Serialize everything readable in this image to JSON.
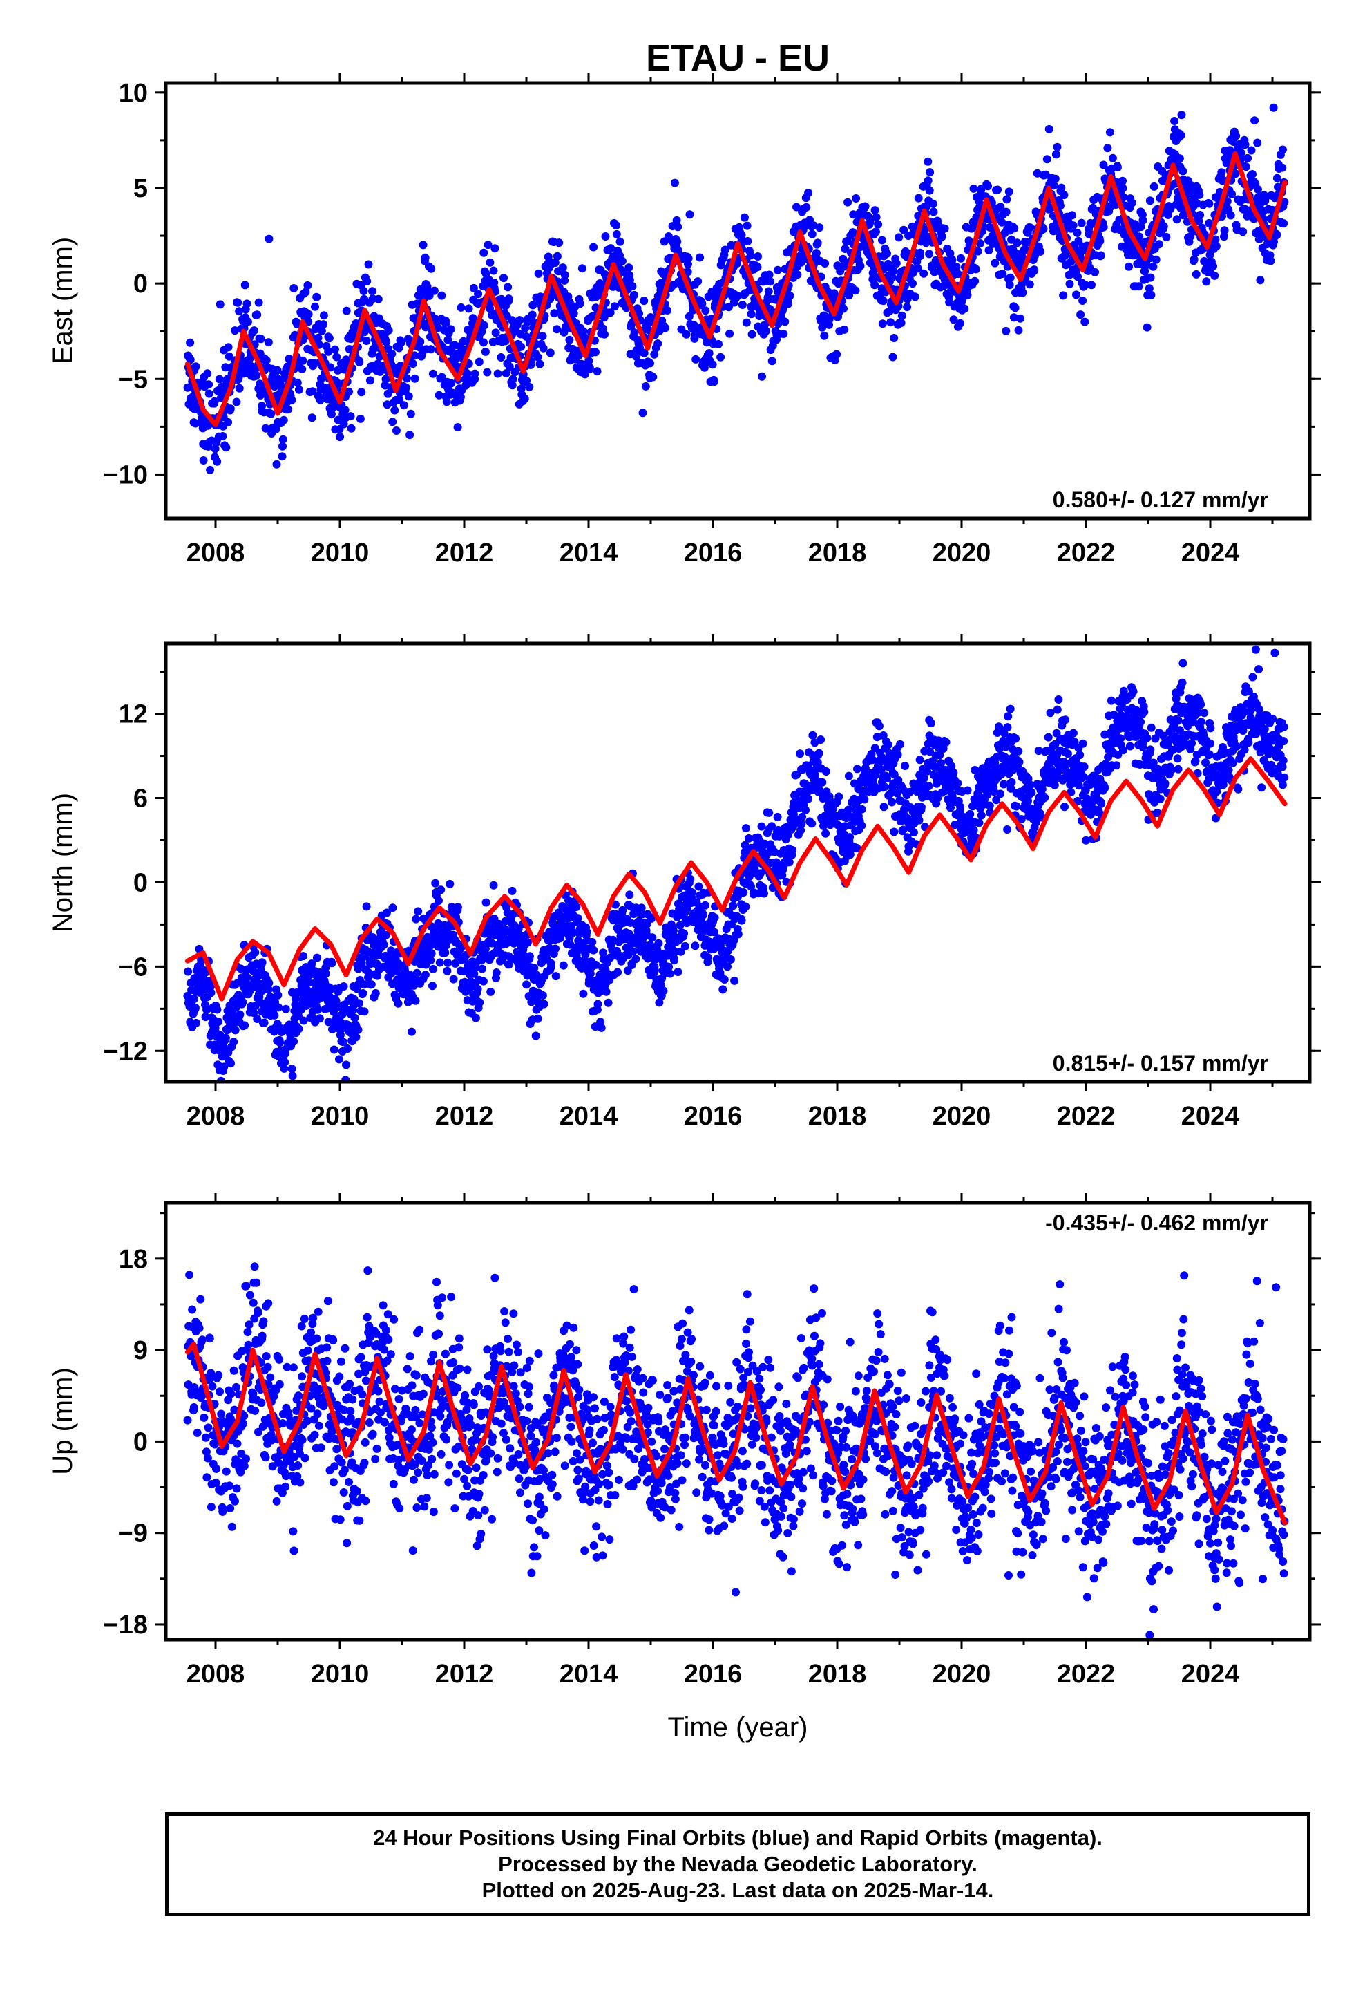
{
  "title": "ETAU - EU",
  "x_axis_label": "Time (year)",
  "footer": {
    "line1": "24 Hour Positions Using Final Orbits (blue) and Rapid Orbits (magenta).",
    "line2": "Processed by the Nevada Geodetic Laboratory.",
    "line3": "Plotted on 2025-Aug-23. Last data on 2025-Mar-14."
  },
  "colors": {
    "data_points": "#0000ff",
    "model_curve": "#ff0000",
    "frame": "#000000"
  },
  "chart_data": [
    {
      "type": "scatter",
      "panel": "East",
      "ylabel": "East (mm)",
      "xlim": [
        2007.2,
        2025.6
      ],
      "ylim": [
        -12.3,
        10.5
      ],
      "x_ticks": [
        2008,
        2010,
        2012,
        2014,
        2016,
        2018,
        2020,
        2022,
        2024
      ],
      "y_ticks": [
        -10,
        -5,
        0,
        5,
        10
      ],
      "rate_label": "0.580+/- 0.127 mm/yr",
      "rate_position": "bottom-right",
      "grid": false,
      "data_start": 2007.55,
      "data_end": 2025.2,
      "model_samples": [
        [
          2007.55,
          -4.2
        ],
        [
          2007.8,
          -6.6
        ],
        [
          2008.0,
          -7.4
        ],
        [
          2008.25,
          -5.4
        ],
        [
          2008.45,
          -2.5
        ],
        [
          2008.7,
          -4.2
        ],
        [
          2009.0,
          -6.8
        ],
        [
          2009.2,
          -5.0
        ],
        [
          2009.4,
          -2.0
        ],
        [
          2009.7,
          -4.0
        ],
        [
          2010.0,
          -6.2
        ],
        [
          2010.2,
          -4.0
        ],
        [
          2010.4,
          -1.4
        ],
        [
          2010.7,
          -3.6
        ],
        [
          2010.9,
          -5.6
        ],
        [
          2011.2,
          -3.0
        ],
        [
          2011.35,
          -0.9
        ],
        [
          2011.6,
          -3.5
        ],
        [
          2011.9,
          -5.0
        ],
        [
          2012.1,
          -3.3
        ],
        [
          2012.4,
          -0.3
        ],
        [
          2012.7,
          -2.5
        ],
        [
          2012.95,
          -4.6
        ],
        [
          2013.2,
          -2.0
        ],
        [
          2013.4,
          0.4
        ],
        [
          2013.7,
          -2.0
        ],
        [
          2013.95,
          -3.8
        ],
        [
          2014.2,
          -1.2
        ],
        [
          2014.4,
          1.0
        ],
        [
          2014.7,
          -1.4
        ],
        [
          2014.95,
          -3.4
        ],
        [
          2015.2,
          -0.8
        ],
        [
          2015.4,
          1.5
        ],
        [
          2015.7,
          -1.0
        ],
        [
          2015.95,
          -2.8
        ],
        [
          2016.2,
          -0.2
        ],
        [
          2016.4,
          2.1
        ],
        [
          2016.7,
          -0.5
        ],
        [
          2016.95,
          -2.2
        ],
        [
          2017.2,
          0.2
        ],
        [
          2017.4,
          2.7
        ],
        [
          2017.7,
          0.0
        ],
        [
          2017.95,
          -1.6
        ],
        [
          2018.2,
          0.8
        ],
        [
          2018.4,
          3.3
        ],
        [
          2018.7,
          0.5
        ],
        [
          2018.95,
          -1.0
        ],
        [
          2019.2,
          1.5
        ],
        [
          2019.4,
          3.8
        ],
        [
          2019.7,
          1.0
        ],
        [
          2019.95,
          -0.4
        ],
        [
          2020.2,
          2.0
        ],
        [
          2020.4,
          4.4
        ],
        [
          2020.7,
          1.6
        ],
        [
          2020.95,
          0.2
        ],
        [
          2021.2,
          2.6
        ],
        [
          2021.4,
          5.0
        ],
        [
          2021.7,
          2.1
        ],
        [
          2021.95,
          0.7
        ],
        [
          2022.2,
          3.2
        ],
        [
          2022.4,
          5.6
        ],
        [
          2022.7,
          2.7
        ],
        [
          2022.95,
          1.3
        ],
        [
          2023.2,
          3.8
        ],
        [
          2023.4,
          6.2
        ],
        [
          2023.7,
          3.3
        ],
        [
          2023.95,
          1.9
        ],
        [
          2024.2,
          4.4
        ],
        [
          2024.4,
          6.8
        ],
        [
          2024.7,
          3.9
        ],
        [
          2024.95,
          2.4
        ],
        [
          2025.2,
          5.3
        ]
      ]
    },
    {
      "type": "scatter",
      "panel": "North",
      "ylabel": "North (mm)",
      "xlim": [
        2007.2,
        2025.6
      ],
      "ylim": [
        -14.2,
        17.0
      ],
      "x_ticks": [
        2008,
        2010,
        2012,
        2014,
        2016,
        2018,
        2020,
        2022,
        2024
      ],
      "y_ticks": [
        -12,
        -6,
        0,
        6,
        12
      ],
      "rate_label": "0.815+/- 0.157 mm/yr",
      "rate_position": "bottom-right",
      "grid": false,
      "data_start": 2007.55,
      "data_end": 2025.2,
      "data_levels": [
        [
          2007.55,
          -8.5
        ],
        [
          2009.0,
          -9.0
        ],
        [
          2010.0,
          -8.5
        ],
        [
          2010.7,
          -6.0
        ],
        [
          2011.5,
          -4.5
        ],
        [
          2012.5,
          -5.0
        ],
        [
          2013.5,
          -4.5
        ],
        [
          2014.5,
          -5.0
        ],
        [
          2015.5,
          -3.5
        ],
        [
          2016.2,
          -3.0
        ],
        [
          2016.8,
          1.0
        ],
        [
          2017.3,
          5.5
        ],
        [
          2018.0,
          5.0
        ],
        [
          2019.0,
          7.5
        ],
        [
          2020.0,
          6.0
        ],
        [
          2021.0,
          7.5
        ],
        [
          2022.0,
          7.5
        ],
        [
          2022.7,
          10.5
        ],
        [
          2023.5,
          9.5
        ],
        [
          2024.5,
          10.0
        ],
        [
          2025.2,
          9.5
        ]
      ],
      "model_samples": [
        [
          2007.55,
          -5.6
        ],
        [
          2007.8,
          -5.0
        ],
        [
          2008.1,
          -8.3
        ],
        [
          2008.35,
          -5.5
        ],
        [
          2008.6,
          -4.2
        ],
        [
          2008.85,
          -5.0
        ],
        [
          2009.1,
          -7.3
        ],
        [
          2009.35,
          -4.8
        ],
        [
          2009.6,
          -3.3
        ],
        [
          2009.85,
          -4.4
        ],
        [
          2010.1,
          -6.6
        ],
        [
          2010.35,
          -4.0
        ],
        [
          2010.6,
          -2.6
        ],
        [
          2010.85,
          -3.6
        ],
        [
          2011.1,
          -5.8
        ],
        [
          2011.35,
          -3.3
        ],
        [
          2011.6,
          -1.8
        ],
        [
          2011.85,
          -2.9
        ],
        [
          2012.1,
          -5.1
        ],
        [
          2012.35,
          -2.5
        ],
        [
          2012.65,
          -1.0
        ],
        [
          2012.9,
          -2.2
        ],
        [
          2013.15,
          -4.4
        ],
        [
          2013.4,
          -1.8
        ],
        [
          2013.65,
          -0.2
        ],
        [
          2013.9,
          -1.5
        ],
        [
          2014.15,
          -3.7
        ],
        [
          2014.4,
          -1.0
        ],
        [
          2014.65,
          0.6
        ],
        [
          2014.9,
          -0.7
        ],
        [
          2015.15,
          -2.9
        ],
        [
          2015.4,
          -0.3
        ],
        [
          2015.65,
          1.4
        ],
        [
          2015.9,
          0.0
        ],
        [
          2016.15,
          -2.0
        ],
        [
          2016.4,
          0.5
        ],
        [
          2016.65,
          2.2
        ],
        [
          2016.9,
          0.8
        ],
        [
          2017.15,
          -1.1
        ],
        [
          2017.4,
          1.4
        ],
        [
          2017.65,
          3.1
        ],
        [
          2017.9,
          1.6
        ],
        [
          2018.15,
          -0.2
        ],
        [
          2018.4,
          2.3
        ],
        [
          2018.65,
          4.0
        ],
        [
          2018.9,
          2.5
        ],
        [
          2019.15,
          0.7
        ],
        [
          2019.4,
          3.3
        ],
        [
          2019.65,
          4.8
        ],
        [
          2019.9,
          3.3
        ],
        [
          2020.15,
          1.6
        ],
        [
          2020.4,
          4.1
        ],
        [
          2020.65,
          5.6
        ],
        [
          2020.9,
          4.2
        ],
        [
          2021.15,
          2.4
        ],
        [
          2021.4,
          5.0
        ],
        [
          2021.65,
          6.4
        ],
        [
          2021.9,
          5.0
        ],
        [
          2022.15,
          3.2
        ],
        [
          2022.4,
          5.8
        ],
        [
          2022.65,
          7.2
        ],
        [
          2022.9,
          5.8
        ],
        [
          2023.15,
          4.0
        ],
        [
          2023.4,
          6.6
        ],
        [
          2023.65,
          8.0
        ],
        [
          2023.9,
          6.6
        ],
        [
          2024.15,
          4.8
        ],
        [
          2024.4,
          7.4
        ],
        [
          2024.65,
          8.8
        ],
        [
          2024.9,
          7.4
        ],
        [
          2025.2,
          5.6
        ]
      ]
    },
    {
      "type": "scatter",
      "panel": "Up",
      "ylabel": "Up (mm)",
      "xlim": [
        2007.2,
        2025.6
      ],
      "ylim": [
        -19.5,
        23.5
      ],
      "x_ticks": [
        2008,
        2010,
        2012,
        2014,
        2016,
        2018,
        2020,
        2022,
        2024
      ],
      "y_ticks": [
        -18,
        -9,
        0,
        9,
        18
      ],
      "rate_label": "-0.435+/- 0.462 mm/yr",
      "rate_position": "top-right",
      "grid": false,
      "data_start": 2007.55,
      "data_end": 2025.2,
      "model_samples": [
        [
          2007.55,
          8.8
        ],
        [
          2007.65,
          9.6
        ],
        [
          2007.9,
          4.0
        ],
        [
          2008.1,
          -0.5
        ],
        [
          2008.35,
          2.0
        ],
        [
          2008.6,
          9.0
        ],
        [
          2008.85,
          4.0
        ],
        [
          2009.1,
          -1.0
        ],
        [
          2009.35,
          2.0
        ],
        [
          2009.6,
          8.6
        ],
        [
          2009.85,
          3.5
        ],
        [
          2010.1,
          -1.4
        ],
        [
          2010.35,
          1.5
        ],
        [
          2010.6,
          8.2
        ],
        [
          2010.85,
          3.0
        ],
        [
          2011.1,
          -1.8
        ],
        [
          2011.35,
          1.0
        ],
        [
          2011.6,
          7.8
        ],
        [
          2011.85,
          2.5
        ],
        [
          2012.1,
          -2.2
        ],
        [
          2012.35,
          0.6
        ],
        [
          2012.6,
          7.4
        ],
        [
          2012.85,
          2.0
        ],
        [
          2013.1,
          -2.6
        ],
        [
          2013.35,
          0.2
        ],
        [
          2013.6,
          7.0
        ],
        [
          2013.85,
          1.6
        ],
        [
          2014.1,
          -3.0
        ],
        [
          2014.35,
          -0.2
        ],
        [
          2014.6,
          6.6
        ],
        [
          2014.85,
          1.2
        ],
        [
          2015.1,
          -3.4
        ],
        [
          2015.35,
          -0.6
        ],
        [
          2015.6,
          6.2
        ],
        [
          2015.85,
          0.8
        ],
        [
          2016.1,
          -3.8
        ],
        [
          2016.35,
          -1.0
        ],
        [
          2016.6,
          5.8
        ],
        [
          2016.85,
          0.4
        ],
        [
          2017.1,
          -4.2
        ],
        [
          2017.35,
          -1.4
        ],
        [
          2017.6,
          5.4
        ],
        [
          2017.85,
          0.0
        ],
        [
          2018.1,
          -4.6
        ],
        [
          2018.35,
          -1.8
        ],
        [
          2018.6,
          5.0
        ],
        [
          2018.85,
          -0.4
        ],
        [
          2019.1,
          -5.0
        ],
        [
          2019.35,
          -2.2
        ],
        [
          2019.6,
          4.6
        ],
        [
          2019.85,
          -0.8
        ],
        [
          2020.1,
          -5.4
        ],
        [
          2020.35,
          -2.6
        ],
        [
          2020.6,
          4.2
        ],
        [
          2020.85,
          -1.2
        ],
        [
          2021.1,
          -5.8
        ],
        [
          2021.35,
          -3.0
        ],
        [
          2021.6,
          3.8
        ],
        [
          2021.85,
          -1.6
        ],
        [
          2022.1,
          -6.2
        ],
        [
          2022.35,
          -3.4
        ],
        [
          2022.6,
          3.4
        ],
        [
          2022.85,
          -2.0
        ],
        [
          2023.1,
          -6.6
        ],
        [
          2023.35,
          -3.8
        ],
        [
          2023.6,
          3.0
        ],
        [
          2023.85,
          -2.4
        ],
        [
          2024.1,
          -7.0
        ],
        [
          2024.35,
          -4.2
        ],
        [
          2024.6,
          2.6
        ],
        [
          2024.85,
          -2.8
        ],
        [
          2025.2,
          -8.0
        ]
      ]
    }
  ]
}
